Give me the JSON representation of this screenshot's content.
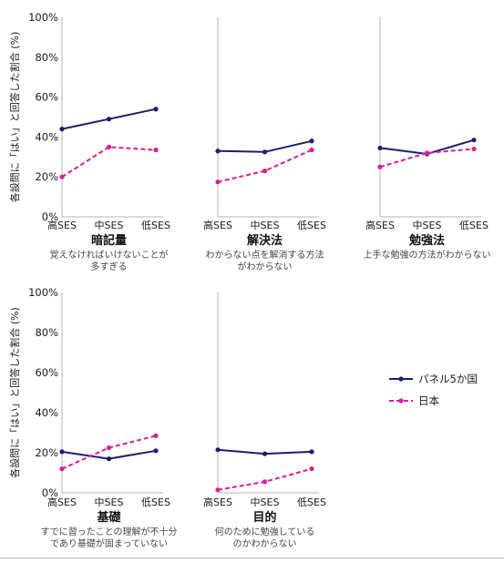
{
  "chart_data": {
    "type": "line",
    "ylabel": "各設問に「はい」と回答した割合 (%)",
    "yticks": [
      "0%",
      "20%",
      "40%",
      "60%",
      "80%",
      "100%"
    ],
    "ylim": [
      0,
      100
    ],
    "categories": [
      "高SES",
      "中SES",
      "低SES"
    ],
    "legend": {
      "placement": "right",
      "entries": [
        {
          "name": "パネル5か国",
          "color": "#1a1f6e",
          "dash": false
        },
        {
          "name": "日本",
          "color": "#d61f9b",
          "dash": true
        }
      ]
    },
    "panels": [
      {
        "title": "暗記量",
        "subtitle": [
          "覚えなければいけないことが",
          "多すぎる"
        ],
        "series": [
          {
            "name": "パネル5か国",
            "values": [
              44,
              49,
              54
            ]
          },
          {
            "name": "日本",
            "values": [
              20,
              35,
              33.5
            ]
          }
        ]
      },
      {
        "title": "解決法",
        "subtitle": [
          "わからない点を解消する方法",
          "がわからない"
        ],
        "series": [
          {
            "name": "パネル5か国",
            "values": [
              33,
              32.5,
              38
            ]
          },
          {
            "name": "日本",
            "values": [
              17.5,
              23,
              33.5
            ]
          }
        ]
      },
      {
        "title": "勉強法",
        "subtitle": [
          "上手な勉強の方法がわからない"
        ],
        "series": [
          {
            "name": "パネル5か国",
            "values": [
              34.5,
              31.5,
              38.5
            ]
          },
          {
            "name": "日本",
            "values": [
              25,
              32,
              34
            ]
          }
        ]
      },
      {
        "title": "基礎",
        "subtitle": [
          "すでに習ったことの理解が不十分",
          "であり基礎が固まっていない"
        ],
        "series": [
          {
            "name": "パネル5か国",
            "values": [
              20.5,
              17,
              21
            ]
          },
          {
            "name": "日本",
            "values": [
              12,
              22.5,
              28.5
            ]
          }
        ]
      },
      {
        "title": "目的",
        "subtitle": [
          "何のために勉強している",
          "のかわからない"
        ],
        "series": [
          {
            "name": "パネル5か国",
            "values": [
              21.5,
              19.5,
              20.5
            ]
          },
          {
            "name": "日本",
            "values": [
              1.5,
              5.5,
              12
            ]
          }
        ]
      }
    ]
  }
}
